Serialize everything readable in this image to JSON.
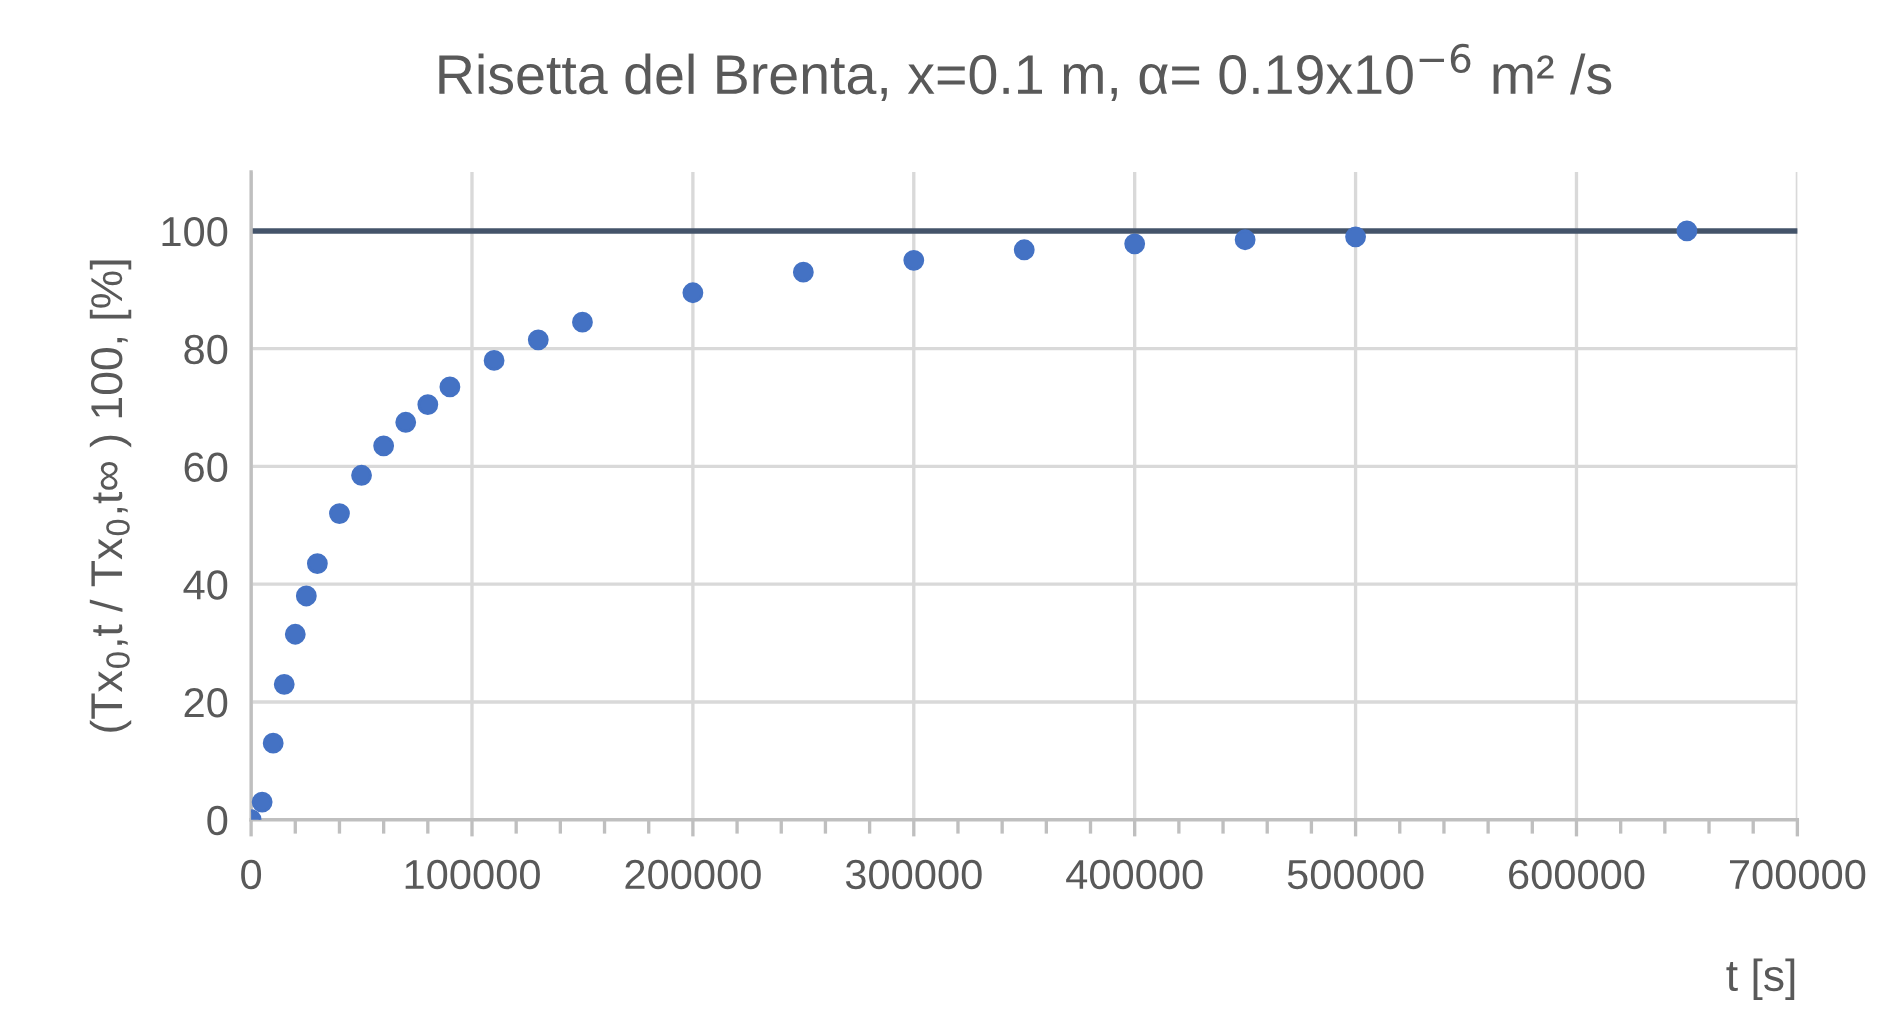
{
  "chart_data": {
    "type": "scatter",
    "title": "Risetta del Brenta, x=0.1 m, α= 0.19x10$^{−6}$ m² /s",
    "xlabel": "t [s]",
    "ylabel": "(Tx$_{0}$,t / Tx$_{0}$,t∞ ) 100, [%]",
    "x": [
      0,
      5000,
      10000,
      15000,
      20000,
      25000,
      30000,
      40000,
      50000,
      60000,
      70000,
      80000,
      90000,
      110000,
      130000,
      150000,
      200000,
      250000,
      300000,
      350000,
      400000,
      450000,
      500000,
      650000
    ],
    "series": [
      {
        "color": "#4472c4",
        "values": [
          0,
          3,
          13,
          23,
          31.5,
          38,
          43.5,
          52,
          58.5,
          63.5,
          67.5,
          70.5,
          73.5,
          78,
          81.5,
          84.5,
          89.5,
          93,
          95,
          96.8,
          97.8,
          98.5,
          99,
          100
        ]
      }
    ],
    "xlim": [
      0,
      700000
    ],
    "xticks": [
      0,
      100000,
      200000,
      300000,
      400000,
      500000,
      600000,
      700000
    ],
    "ylim": [
      0,
      110
    ],
    "yticks": [
      0,
      20,
      40,
      60,
      80,
      100
    ],
    "ref_lines": [
      {
        "axis": "y",
        "value": 100,
        "color": "#44546a"
      }
    ],
    "grid": true,
    "marker": "circle",
    "legend": false
  }
}
